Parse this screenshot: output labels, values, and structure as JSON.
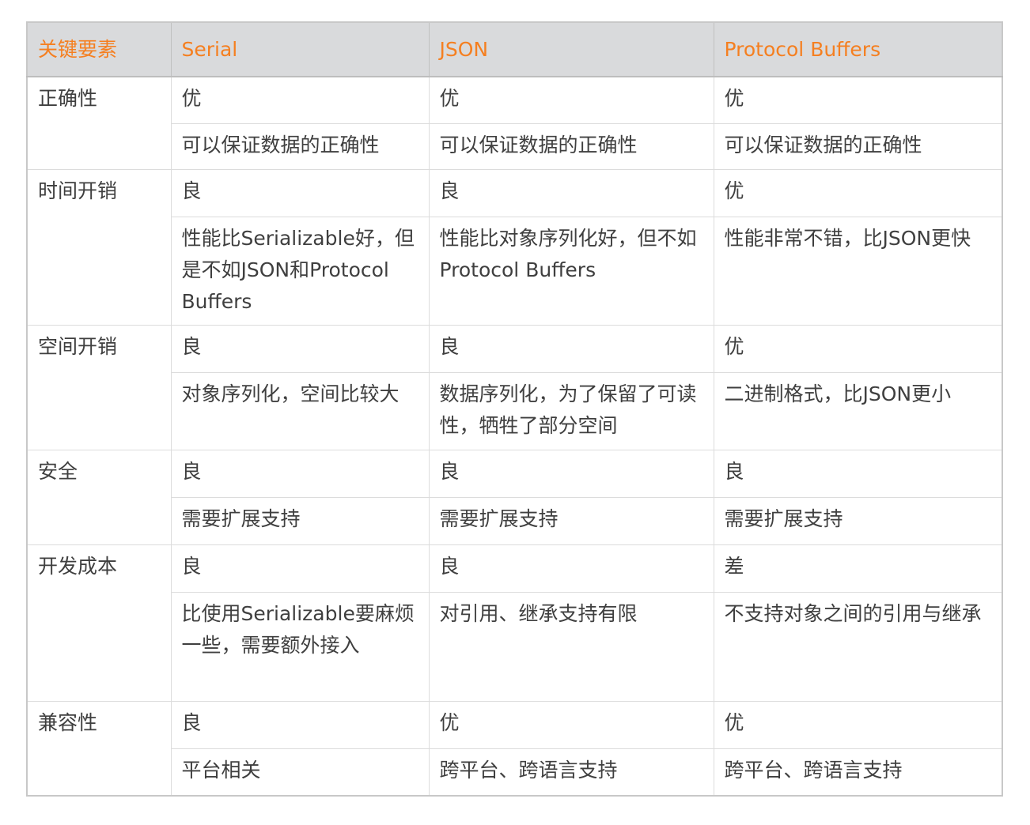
{
  "header": [
    "关键要素",
    "Serial",
    "JSON",
    "Protocol Buffers"
  ],
  "accent_color": "#f57f20",
  "header_bg": "#d9dadc",
  "rows": [
    {
      "label": "正确性",
      "rating": [
        "优",
        "优",
        "优"
      ],
      "desc": [
        "可以保证数据的正确性",
        "可以保证数据的正确性",
        "可以保证数据的正确性"
      ]
    },
    {
      "label": "时间开销",
      "rating": [
        "良",
        "良",
        "优"
      ],
      "desc": [
        "性能比Serializable好，但是不如JSON和Protocol Buffers",
        "性能比对象序列化好，但不如Protocol Buffers",
        "性能非常不错，比JSON更快"
      ]
    },
    {
      "label": "空间开销",
      "rating": [
        "良",
        "良",
        "优"
      ],
      "desc": [
        "对象序列化，空间比较大",
        "数据序列化，为了保留了可读性，牺牲了部分空间",
        "二进制格式，比JSON更小"
      ]
    },
    {
      "label": "安全",
      "rating": [
        "良",
        "良",
        "良"
      ],
      "desc": [
        "需要扩展支持",
        "需要扩展支持",
        "需要扩展支持"
      ]
    },
    {
      "label": "开发成本",
      "rating": [
        "良",
        "良",
        "差"
      ],
      "desc": [
        "比使用Serializable要麻烦一些，需要额外接入",
        "对引用、继承支持有限",
        "不支持对象之间的引用与继承"
      ]
    },
    {
      "label": "兼容性",
      "rating": [
        "良",
        "优",
        "优"
      ],
      "desc": [
        "平台相关",
        "跨平台、跨语言支持",
        "跨平台、跨语言支持"
      ]
    }
  ]
}
